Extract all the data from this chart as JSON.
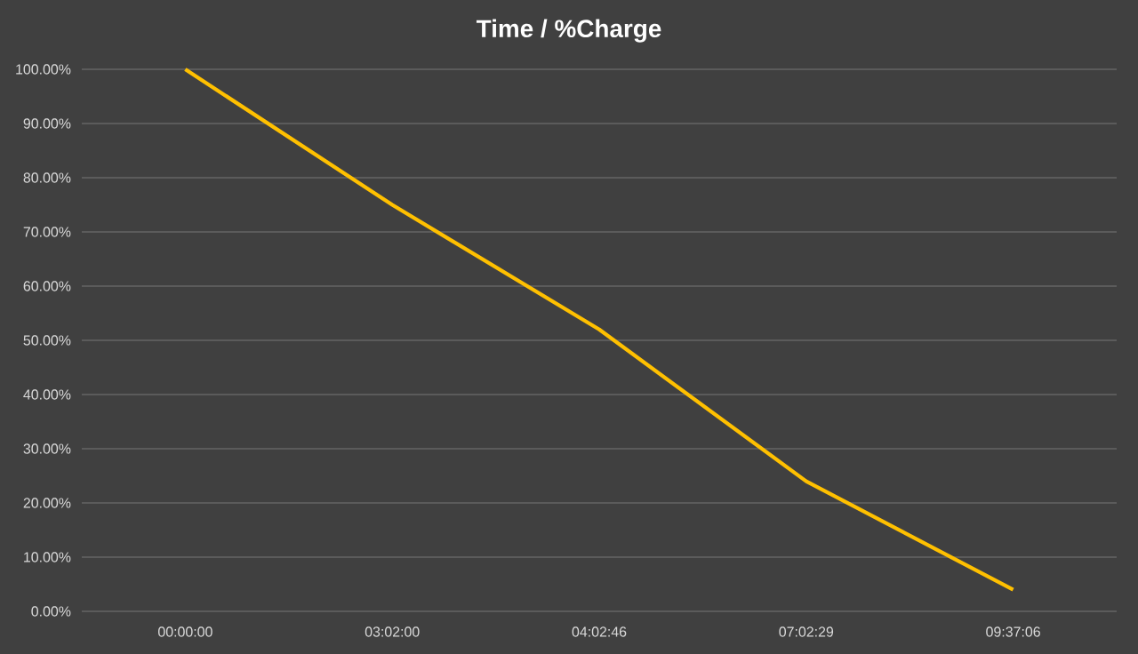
{
  "chart_data": {
    "type": "line",
    "title": "Time / %Charge",
    "categories": [
      "00:00:00",
      "03:02:00",
      "04:02:46",
      "07:02:29",
      "09:37:06"
    ],
    "series": [
      {
        "color": "#ffc000",
        "values": [
          100,
          75,
          52,
          24,
          4
        ]
      }
    ],
    "ylim": [
      0,
      100
    ],
    "yticks": [
      {
        "value": 0,
        "label": "0.00%"
      },
      {
        "value": 10,
        "label": "10.00%"
      },
      {
        "value": 20,
        "label": "20.00%"
      },
      {
        "value": 30,
        "label": "30.00%"
      },
      {
        "value": 40,
        "label": "40.00%"
      },
      {
        "value": 50,
        "label": "50.00%"
      },
      {
        "value": 60,
        "label": "60.00%"
      },
      {
        "value": 70,
        "label": "70.00%"
      },
      {
        "value": 80,
        "label": "80.00%"
      },
      {
        "value": 90,
        "label": "90.00%"
      },
      {
        "value": 100,
        "label": "100.00%"
      }
    ],
    "grid": "y",
    "legend": false,
    "marker": "none",
    "line_style": "solid"
  }
}
